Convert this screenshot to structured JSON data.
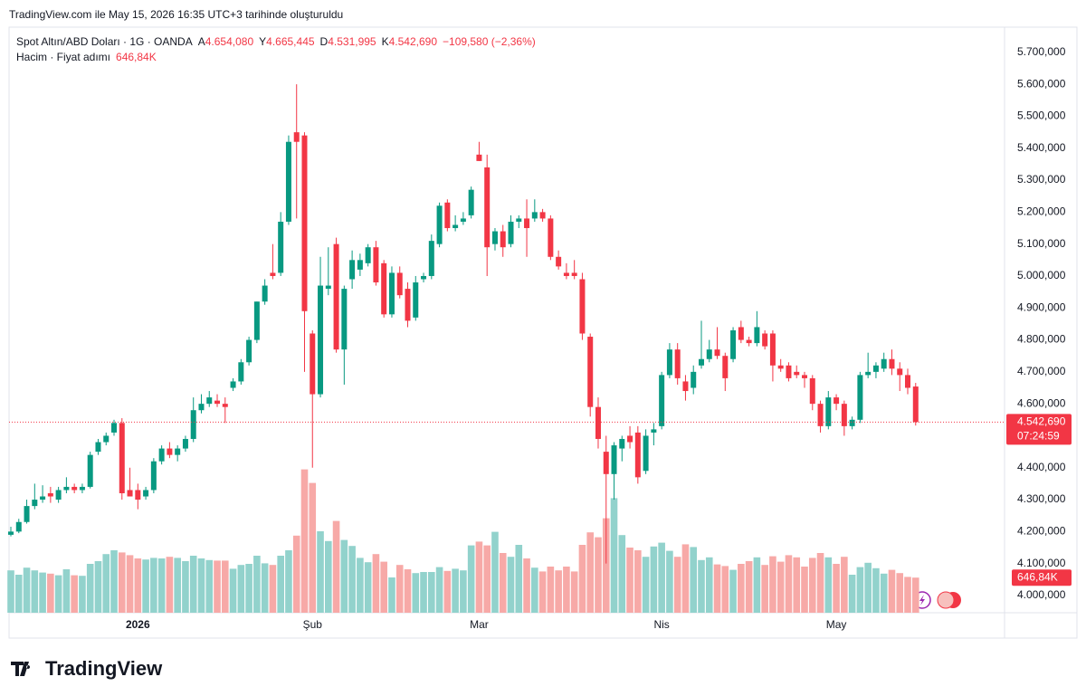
{
  "chart_data": {
    "type": "candlestick",
    "attribution": "TradingView.com ile May 15, 2026 16:35 UTC+3 tarihinde oluşturuldu",
    "title": "Spot Altın/ABD Doları · 1G · OANDA",
    "ohlc": [
      {
        "key": "A",
        "value": "4.654,080"
      },
      {
        "key": "Y",
        "value": "4.665,445"
      },
      {
        "key": "D",
        "value": "4.531,995"
      },
      {
        "key": "K",
        "value": "4.542,690"
      }
    ],
    "change": "−109,580 (−2,36%)",
    "volume_title": "Hacim · Fiyat adımı",
    "volume_header": "646,84K",
    "brand": "TradingView",
    "categories": [
      null,
      null,
      null,
      null,
      null,
      null,
      null,
      null,
      null,
      null,
      null,
      null,
      null,
      null,
      null,
      null,
      "2026",
      null,
      null,
      null,
      null,
      null,
      null,
      null,
      null,
      null,
      null,
      null,
      null,
      null,
      null,
      null,
      null,
      null,
      null,
      null,
      null,
      null,
      "Şub",
      null,
      null,
      null,
      null,
      null,
      null,
      null,
      null,
      null,
      null,
      null,
      null,
      null,
      null,
      null,
      null,
      null,
      null,
      null,
      null,
      "Mar",
      null,
      null,
      null,
      null,
      null,
      null,
      null,
      null,
      null,
      null,
      null,
      null,
      null,
      null,
      null,
      null,
      null,
      null,
      null,
      null,
      null,
      null,
      "Nis",
      null,
      null,
      null,
      null,
      null,
      null,
      null,
      null,
      null,
      null,
      null,
      null,
      null,
      null,
      null,
      null,
      null,
      null,
      null,
      null,
      null,
      "May",
      null,
      null,
      null,
      null,
      null,
      null,
      null,
      null,
      null,
      null
    ],
    "open": [
      4190,
      4200,
      4230,
      4280,
      4300,
      4320,
      4300,
      4330,
      4340,
      4330,
      4340,
      4450,
      4480,
      4510,
      4540,
      4330,
      4330,
      4310,
      4330,
      4420,
      4460,
      4440,
      4460,
      4490,
      4580,
      4600,
      4610,
      4600,
      4650,
      4670,
      4730,
      4800,
      4920,
      5010,
      5010,
      5170,
      5450,
      5440,
      4820,
      4630,
      4960,
      5100,
      4770,
      4990,
      5020,
      5040,
      5090,
      5040,
      4880,
      5010,
      4960,
      4870,
      4990,
      5000,
      5100,
      5230,
      5150,
      5170,
      5190,
      5380,
      5340,
      5100,
      5140,
      5100,
      5170,
      5180,
      5180,
      5200,
      5180,
      5060,
      5010,
      5010,
      4990,
      4810,
      4590,
      4450,
      4380,
      4460,
      4500,
      4510,
      4390,
      4510,
      4530,
      4690,
      4770,
      4670,
      4650,
      4720,
      4740,
      4770,
      4750,
      4740,
      4840,
      4800,
      4790,
      4820,
      4820,
      4720,
      4720,
      4700,
      4690,
      4680,
      4600,
      4530,
      4620,
      4600,
      4530,
      4550,
      4690,
      4700,
      4710,
      4740,
      4710,
      4690,
      4654.08
    ],
    "high": [
      4215,
      4240,
      4300,
      4350,
      4345,
      4340,
      4340,
      4370,
      4350,
      4350,
      4450,
      4490,
      4510,
      4550,
      4555,
      4400,
      4350,
      4340,
      4430,
      4470,
      4480,
      4470,
      4500,
      4620,
      4630,
      4640,
      4630,
      4620,
      4680,
      4740,
      4810,
      4920,
      4990,
      5100,
      5200,
      5440,
      5600,
      5450,
      4830,
      5060,
      5090,
      5120,
      4970,
      5080,
      5070,
      5100,
      5110,
      5050,
      5030,
      5030,
      4980,
      5000,
      5010,
      5130,
      5230,
      5240,
      5190,
      5200,
      5280,
      5420,
      5380,
      5150,
      5160,
      5190,
      5190,
      5240,
      5240,
      5210,
      5190,
      5080,
      5040,
      5050,
      5010,
      4820,
      4620,
      4500,
      4480,
      4500,
      4530,
      4530,
      4520,
      4540,
      4700,
      4790,
      4790,
      4690,
      4720,
      4860,
      4800,
      4840,
      4760,
      4840,
      4860,
      4810,
      4890,
      4830,
      4830,
      4740,
      4730,
      4720,
      4700,
      4690,
      4610,
      4640,
      4630,
      4610,
      4560,
      4700,
      4760,
      4730,
      4760,
      4770,
      4730,
      4710,
      4665.445
    ],
    "low": [
      4185,
      4195,
      4225,
      4270,
      4290,
      4290,
      4290,
      4320,
      4320,
      4320,
      4335,
      4440,
      4470,
      4500,
      4300,
      4310,
      4270,
      4300,
      4320,
      4410,
      4430,
      4420,
      4450,
      4480,
      4570,
      4590,
      4590,
      4540,
      4640,
      4660,
      4720,
      4790,
      4910,
      4990,
      5000,
      5160,
      5180,
      4700,
      4400,
      4620,
      4940,
      4760,
      4660,
      4960,
      5000,
      5030,
      4970,
      4870,
      4870,
      4930,
      4840,
      4860,
      4980,
      4990,
      5090,
      5140,
      5140,
      5160,
      5180,
      5360,
      5000,
      5080,
      5060,
      5090,
      5150,
      5060,
      5170,
      5170,
      5050,
      5020,
      4990,
      4990,
      4800,
      4560,
      4460,
      4100,
      4300,
      4420,
      4460,
      4350,
      4380,
      4470,
      4520,
      4680,
      4660,
      4610,
      4630,
      4710,
      4730,
      4740,
      4640,
      4730,
      4790,
      4780,
      4780,
      4770,
      4670,
      4700,
      4670,
      4680,
      4650,
      4580,
      4510,
      4520,
      4580,
      4500,
      4520,
      4540,
      4680,
      4680,
      4700,
      4690,
      4640,
      4630,
      4531.995
    ],
    "close": [
      4200,
      4230,
      4280,
      4300,
      4310,
      4310,
      4330,
      4340,
      4330,
      4340,
      4440,
      4480,
      4500,
      4540,
      4320,
      4310,
      4300,
      4330,
      4420,
      4460,
      4440,
      4460,
      4490,
      4580,
      4600,
      4620,
      4600,
      4590,
      4670,
      4730,
      4800,
      4920,
      4970,
      5000,
      5170,
      5420,
      5420,
      4890,
      4630,
      4970,
      4970,
      4770,
      4960,
      5050,
      5050,
      5090,
      4980,
      4880,
      5010,
      4940,
      4860,
      4980,
      5000,
      5110,
      5220,
      5150,
      5160,
      5180,
      5270,
      5360,
      5090,
      5140,
      5090,
      5170,
      5180,
      5150,
      5200,
      5180,
      5060,
      5030,
      5000,
      5000,
      4820,
      4590,
      4490,
      4380,
      4470,
      4490,
      4480,
      4370,
      4500,
      4520,
      4690,
      4770,
      4680,
      4640,
      4700,
      4740,
      4770,
      4750,
      4680,
      4830,
      4800,
      4790,
      4840,
      4780,
      4720,
      4710,
      4680,
      4690,
      4680,
      4600,
      4530,
      4620,
      4600,
      4530,
      4550,
      4690,
      4700,
      4720,
      4740,
      4710,
      4690,
      4650,
      4542.69
    ],
    "volume": [
      780,
      700,
      830,
      780,
      740,
      720,
      690,
      800,
      690,
      680,
      900,
      950,
      1080,
      1150,
      1110,
      1060,
      1000,
      980,
      1010,
      1000,
      1030,
      1010,
      950,
      1050,
      1000,
      970,
      960,
      960,
      810,
      880,
      900,
      1050,
      910,
      880,
      1050,
      1150,
      1420,
      2640,
      2390,
      1500,
      1320,
      1690,
      1340,
      1230,
      1010,
      930,
      1080,
      940,
      650,
      880,
      800,
      730,
      750,
      750,
      840,
      770,
      810,
      780,
      1240,
      1310,
      1240,
      1490,
      1100,
      1030,
      1250,
      1000,
      830,
      760,
      850,
      780,
      850,
      760,
      1250,
      1480,
      1390,
      1740,
      2110,
      1430,
      1200,
      1150,
      1030,
      1220,
      1290,
      1140,
      1030,
      1260,
      1210,
      970,
      1020,
      890,
      860,
      790,
      900,
      950,
      1020,
      880,
      1040,
      940,
      1060,
      1020,
      850,
      1010,
      1100,
      1020,
      900,
      1030,
      700,
      840,
      920,
      820,
      720,
      790,
      730,
      660,
      646.84
    ],
    "ylim": [
      3946,
      5779
    ],
    "yticks": [
      {
        "value": 4000,
        "label": "4.000,000"
      },
      {
        "value": 4100,
        "label": "4.100,000"
      },
      {
        "value": 4200,
        "label": "4.200,000"
      },
      {
        "value": 4300,
        "label": "4.300,000"
      },
      {
        "value": 4400,
        "label": "4.400,000"
      },
      {
        "value": 4500,
        "label": "4.500,000"
      },
      {
        "value": 4600,
        "label": "4.600,000"
      },
      {
        "value": 4700,
        "label": "4.700,000"
      },
      {
        "value": 4800,
        "label": "4.800,000"
      },
      {
        "value": 4900,
        "label": "4.900,000"
      },
      {
        "value": 5000,
        "label": "5.000,000"
      },
      {
        "value": 5100,
        "label": "5.100,000"
      },
      {
        "value": 5200,
        "label": "5.200,000"
      },
      {
        "value": 5300,
        "label": "5.300,000"
      },
      {
        "value": 5400,
        "label": "5.400,000"
      },
      {
        "value": 5500,
        "label": "5.500,000"
      },
      {
        "value": 5600,
        "label": "5.600,000"
      },
      {
        "value": 5700,
        "label": "5.700,000"
      }
    ],
    "last_price": {
      "value": 4542.69,
      "label": "4.542,690"
    },
    "countdown": "07:24:59",
    "last_volume": {
      "value": 646.84,
      "label": "646,84K"
    },
    "grid": false,
    "up_color": "#089981",
    "down_color": "#f23645",
    "volume_up_color": "#92d2cc",
    "volume_down_color": "#f7a9a7"
  }
}
